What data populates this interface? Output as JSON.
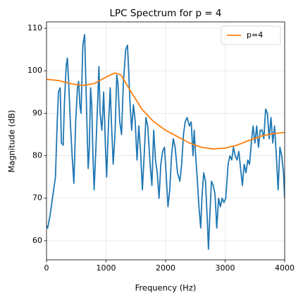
{
  "chart_data": {
    "type": "line",
    "title": "LPC Spectrum for p = 4",
    "xlabel": "Frequency (Hz)",
    "ylabel": "Magnitude (dB)",
    "xlim": [
      0,
      4000
    ],
    "xticks": [
      0,
      1000,
      2000,
      3000,
      4000
    ],
    "ylim": [
      55.5,
      111.5
    ],
    "yticks": [
      60,
      70,
      80,
      90,
      100,
      110
    ],
    "grid": true,
    "legend": "upper right",
    "series": [
      {
        "color": "#1f77b4",
        "x": [
          0,
          20,
          60,
          120,
          150,
          180,
          200,
          230,
          250,
          280,
          300,
          330,
          350,
          370,
          400,
          430,
          460,
          490,
          520,
          540,
          560,
          580,
          610,
          640,
          660,
          680,
          700,
          720,
          740,
          760,
          780,
          800,
          830,
          860,
          880,
          900,
          930,
          960,
          990,
          1010,
          1040,
          1070,
          1090,
          1120,
          1150,
          1180,
          1200,
          1230,
          1260,
          1290,
          1330,
          1360,
          1380,
          1400,
          1430,
          1460,
          1490,
          1520,
          1550,
          1580,
          1610,
          1640,
          1670,
          1700,
          1740,
          1770,
          1800,
          1830,
          1860,
          1890,
          1920,
          1950,
          1980,
          2000,
          2040,
          2070,
          2100,
          2130,
          2160,
          2200,
          2240,
          2270,
          2300,
          2330,
          2360,
          2400,
          2430,
          2460,
          2480,
          2500,
          2530,
          2560,
          2590,
          2610,
          2640,
          2670,
          2700,
          2720,
          2740,
          2770,
          2800,
          2830,
          2860,
          2890,
          2920,
          2950,
          2980,
          3010,
          3050,
          3080,
          3110,
          3140,
          3170,
          3200,
          3230,
          3260,
          3290,
          3320,
          3350,
          3380,
          3410,
          3440,
          3470,
          3500,
          3530,
          3560,
          3590,
          3620,
          3650,
          3680,
          3710,
          3740,
          3770,
          3800,
          3830,
          3860,
          3890,
          3920,
          3950,
          3980,
          4000
        ],
        "values": [
          63.5,
          63,
          66,
          72,
          75,
          88,
          95,
          96,
          83,
          82.5,
          92,
          101,
          103,
          98,
          88,
          80,
          73.5,
          88,
          96,
          97.5,
          92,
          90,
          106,
          108.5,
          98,
          87,
          77,
          82,
          96,
          92,
          80,
          72,
          82,
          93,
          101,
          90,
          86,
          95,
          82,
          75,
          87,
          96,
          88,
          78,
          85,
          99,
          97,
          88,
          85,
          97,
          105,
          106,
          100,
          93,
          86,
          92,
          88,
          79,
          87,
          81,
          72,
          80,
          89,
          87,
          78,
          73,
          86,
          79,
          76,
          70,
          78,
          81,
          82,
          78,
          68,
          72,
          80,
          84,
          82,
          76,
          74,
          78,
          85,
          88,
          89,
          87,
          88,
          80,
          86,
          81,
          75,
          68,
          63,
          70,
          76,
          74,
          65,
          58,
          65,
          74,
          73,
          71,
          63,
          70,
          68,
          70,
          69,
          70,
          78,
          80,
          79,
          82,
          80,
          79,
          81,
          77,
          73,
          78,
          76,
          79,
          78,
          83,
          87,
          83,
          87,
          82,
          86,
          86,
          84,
          91,
          90,
          84,
          89,
          83,
          87,
          80,
          72,
          82,
          80,
          76,
          70
        ]
      },
      {
        "name": "p=4",
        "color": "#ff7f0e",
        "x": [
          0,
          200,
          400,
          600,
          800,
          1000,
          1150,
          1250,
          1400,
          1600,
          1800,
          2000,
          2200,
          2400,
          2600,
          2800,
          3000,
          3200,
          3400,
          3600,
          3800,
          4000
        ],
        "values": [
          98,
          97.7,
          97,
          96.5,
          97,
          98.5,
          99.5,
          99,
          95.5,
          91,
          88,
          86,
          84.5,
          83,
          82,
          81.6,
          81.8,
          82.5,
          83.6,
          84.6,
          85.2,
          85.5
        ]
      }
    ]
  }
}
